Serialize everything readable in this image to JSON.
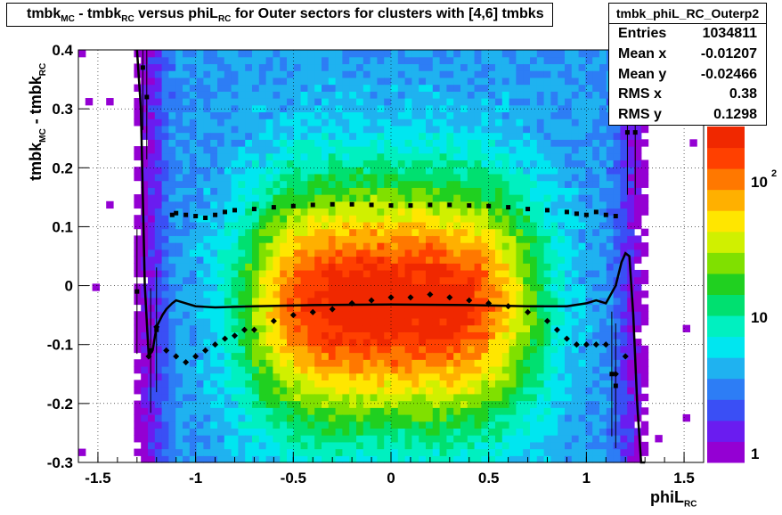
{
  "title": {
    "text": "tmbk",
    "sub1": "MC",
    "text2": " - tmbk",
    "sub2": "RC",
    "text3": " versus phiL",
    "sub3": "RC",
    "text4": " for Outer sectors for clusters with [4,6] tmbks"
  },
  "stats_box": {
    "name": "tmbk_phiL_RC_Outerp2",
    "rows": [
      {
        "label": "Entries",
        "value": "1034811"
      },
      {
        "label": "Mean x",
        "value": "-0.01207"
      },
      {
        "label": "Mean y",
        "value": "-0.02466"
      },
      {
        "label": "RMS x",
        "value": "0.38"
      },
      {
        "label": "RMS y",
        "value": "0.1298"
      }
    ]
  },
  "chart_data": {
    "type": "heatmap",
    "xlabel": "phiL",
    "xlabel_sub": "RC",
    "ylabel": "tmbk",
    "ylabel_sub1": "MC",
    "ylabel_mid": " - tmbk",
    "ylabel_sub2": "RC",
    "xlim": [
      -1.6,
      1.6
    ],
    "ylim": [
      -0.3,
      0.4
    ],
    "x_ticks": [
      "-1.5",
      "-1",
      "-0.5",
      "0",
      "0.5",
      "1",
      "1.5"
    ],
    "x_tick_values": [
      -1.5,
      -1,
      -0.5,
      0,
      0.5,
      1,
      1.5
    ],
    "y_ticks": [
      "-0.3",
      "-0.2",
      "-0.1",
      "0",
      "0.1",
      "0.2",
      "0.3",
      "0.4"
    ],
    "y_tick_values": [
      -0.3,
      -0.2,
      -0.1,
      0,
      0.1,
      0.2,
      0.3,
      0.4
    ],
    "z_scale": "log",
    "z_ticks": [
      "1",
      "10",
      "10^2"
    ],
    "grid": true,
    "mean_profile": {
      "x": [
        -1.24,
        -1.2,
        -1.15,
        -1.1,
        -1.05,
        -1.0,
        -0.95,
        -0.9,
        -0.85,
        -0.8,
        -0.75,
        -0.7,
        -0.6,
        -0.5,
        -0.4,
        -0.3,
        -0.2,
        -0.1,
        0.0,
        0.1,
        0.2,
        0.3,
        0.4,
        0.5,
        0.6,
        0.7,
        0.8,
        0.85,
        0.9,
        0.95,
        1.0,
        1.05,
        1.1,
        1.15,
        1.2
      ],
      "y": [
        -0.12,
        -0.07,
        -0.11,
        -0.12,
        -0.13,
        -0.12,
        -0.11,
        -0.1,
        -0.09,
        -0.085,
        -0.075,
        -0.075,
        -0.06,
        -0.05,
        -0.045,
        -0.04,
        -0.03,
        -0.025,
        -0.02,
        -0.02,
        -0.015,
        -0.02,
        -0.025,
        -0.03,
        -0.035,
        -0.045,
        -0.06,
        -0.075,
        -0.09,
        -0.1,
        -0.1,
        -0.1,
        -0.1,
        -0.15,
        -0.12
      ]
    },
    "sigma_profile": {
      "x": [
        -1.12,
        -1.1,
        -1.05,
        -1.0,
        -0.95,
        -0.9,
        -0.85,
        -0.8,
        -0.7,
        -0.6,
        -0.5,
        -0.4,
        -0.3,
        -0.2,
        -0.1,
        0.0,
        0.1,
        0.2,
        0.3,
        0.4,
        0.5,
        0.6,
        0.7,
        0.8,
        0.9,
        0.95,
        1.0,
        1.05,
        1.1,
        1.15
      ],
      "y": [
        0.12,
        0.123,
        0.12,
        0.118,
        0.115,
        0.12,
        0.125,
        0.128,
        0.13,
        0.133,
        0.135,
        0.137,
        0.138,
        0.138,
        0.137,
        0.136,
        0.136,
        0.137,
        0.137,
        0.136,
        0.135,
        0.133,
        0.13,
        0.128,
        0.125,
        0.122,
        0.12,
        0.125,
        0.12,
        0.118
      ]
    },
    "fit_curve": {
      "x": [
        -1.3,
        -1.28,
        -1.26,
        -1.24,
        -1.22,
        -1.2,
        -1.17,
        -1.15,
        -1.12,
        -1.1,
        -1.05,
        -1.0,
        -0.9,
        -0.7,
        -0.4,
        0.0,
        0.4,
        0.7,
        0.9,
        1.0,
        1.05,
        1.1,
        1.15,
        1.18,
        1.2,
        1.22,
        1.24,
        1.26,
        1.28,
        1.3
      ],
      "y": [
        0.4,
        0.3,
        0.0,
        -0.12,
        -0.11,
        -0.07,
        -0.05,
        -0.04,
        -0.03,
        -0.025,
        -0.03,
        -0.035,
        -0.037,
        -0.035,
        -0.033,
        -0.032,
        -0.033,
        -0.035,
        -0.035,
        -0.03,
        -0.025,
        -0.03,
        0.0,
        0.04,
        0.055,
        0.05,
        -0.05,
        -0.2,
        -0.3,
        -0.3
      ]
    },
    "outlier_points": {
      "x": [
        -1.27,
        -1.25,
        -1.23,
        -1.3,
        -1.2,
        1.13,
        1.15,
        1.21,
        1.25
      ],
      "y": [
        0.37,
        0.32,
        -0.11,
        -0.01,
        -0.075,
        -0.15,
        -0.17,
        0.26,
        0.26
      ]
    }
  },
  "colors": {
    "palette": [
      "#9400d3",
      "#6a1cf0",
      "#3a4ff5",
      "#2d7df5",
      "#1fb2f0",
      "#00e6f0",
      "#00f0c0",
      "#00e070",
      "#20d020",
      "#80e000",
      "#d0f000",
      "#ffe600",
      "#ffb000",
      "#ff7800",
      "#ff4000",
      "#f02800"
    ]
  }
}
